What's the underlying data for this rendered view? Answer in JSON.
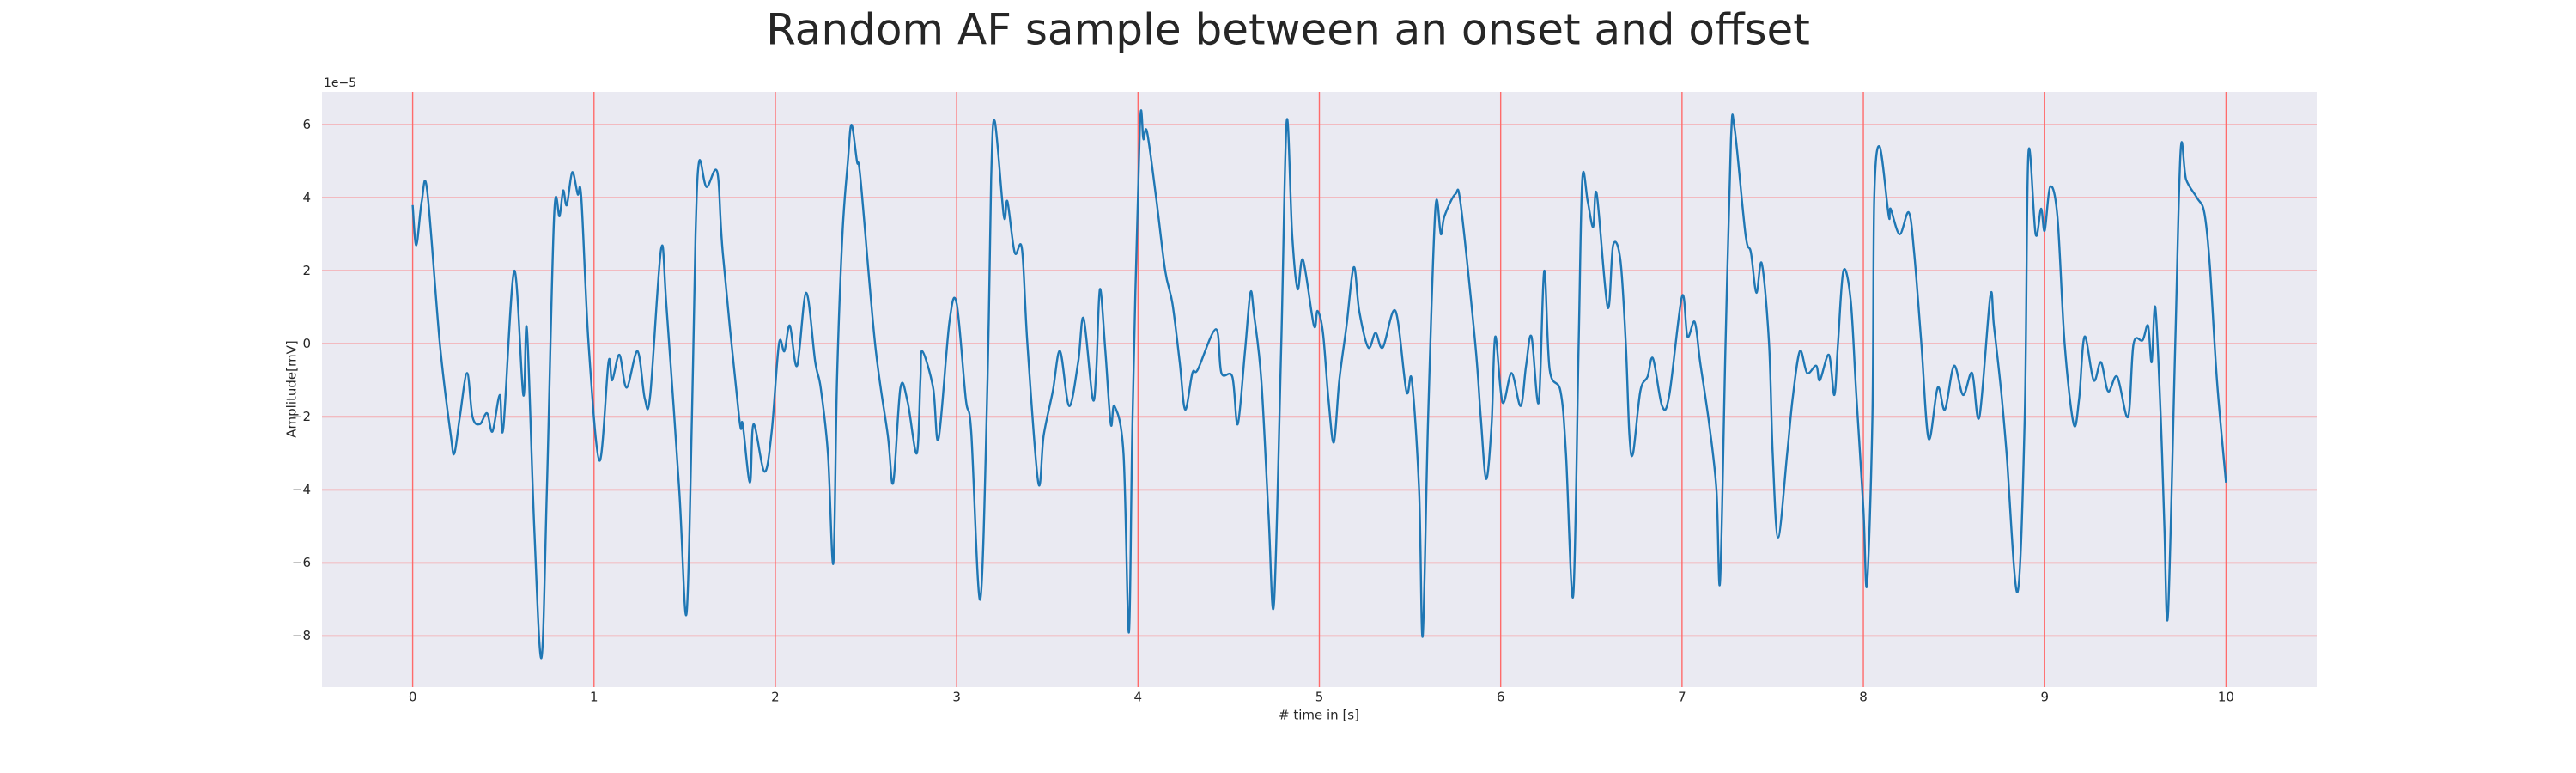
{
  "chart_data": {
    "type": "line",
    "title": "Random AF sample between an onset and offset",
    "x_label": "# time in [s]",
    "y_label": "Amplitude[mV]",
    "y_offset_label": "1e−5",
    "background": "#eaeaf2",
    "grid": true,
    "grid_color": "#ff6b6b",
    "xlim": [
      -0.5,
      10.5
    ],
    "ylim": [
      -9.4,
      6.9
    ],
    "xticks": [
      0,
      1,
      2,
      3,
      4,
      5,
      6,
      7,
      8,
      9,
      10
    ],
    "yticks": [
      {
        "value": -8,
        "label": "−8"
      },
      {
        "value": -6,
        "label": "−6"
      },
      {
        "value": -4,
        "label": "−4"
      },
      {
        "value": -2,
        "label": "−2"
      },
      0,
      2,
      4,
      6
    ],
    "x": [
      0.0,
      0.02,
      0.05,
      0.08,
      0.15,
      0.21,
      0.23,
      0.26,
      0.3,
      0.33,
      0.37,
      0.41,
      0.44,
      0.48,
      0.5,
      0.56,
      0.61,
      0.63,
      0.67,
      0.71,
      0.74,
      0.78,
      0.81,
      0.83,
      0.85,
      0.88,
      0.91,
      0.93,
      0.97,
      1.03,
      1.08,
      1.1,
      1.14,
      1.18,
      1.24,
      1.28,
      1.31,
      1.37,
      1.4,
      1.47,
      1.51,
      1.54,
      1.56,
      1.58,
      1.62,
      1.68,
      1.71,
      1.8,
      1.82,
      1.86,
      1.88,
      1.94,
      1.98,
      2.02,
      2.05,
      2.08,
      2.12,
      2.17,
      2.22,
      2.25,
      2.29,
      2.32,
      2.34,
      2.37,
      2.4,
      2.42,
      2.45,
      2.47,
      2.55,
      2.62,
      2.65,
      2.69,
      2.73,
      2.78,
      2.8,
      2.81,
      2.87,
      2.9,
      2.96,
      3.0,
      3.05,
      3.08,
      3.13,
      3.17,
      3.19,
      3.21,
      3.26,
      3.28,
      3.32,
      3.36,
      3.39,
      3.45,
      3.48,
      3.53,
      3.57,
      3.62,
      3.67,
      3.7,
      3.75,
      3.77,
      3.79,
      3.82,
      3.85,
      3.87,
      3.92,
      3.95,
      3.97,
      4.01,
      4.03,
      4.05,
      4.1,
      4.15,
      4.19,
      4.23,
      4.26,
      4.3,
      4.33,
      4.43,
      4.46,
      4.52,
      4.55,
      4.59,
      4.62,
      4.64,
      4.68,
      4.72,
      4.75,
      4.79,
      4.82,
      4.85,
      4.88,
      4.91,
      4.97,
      4.99,
      5.02,
      5.05,
      5.08,
      5.11,
      5.15,
      5.19,
      5.22,
      5.27,
      5.31,
      5.35,
      5.42,
      5.48,
      5.51,
      5.55,
      5.57,
      5.6,
      5.64,
      5.67,
      5.69,
      5.75,
      5.78,
      5.86,
      5.89,
      5.92,
      5.95,
      5.97,
      6.01,
      6.06,
      6.11,
      6.14,
      6.17,
      6.21,
      6.24,
      6.27,
      6.33,
      6.36,
      6.4,
      6.43,
      6.45,
      6.48,
      6.51,
      6.53,
      6.59,
      6.62,
      6.66,
      6.69,
      6.71,
      6.73,
      6.77,
      6.81,
      6.84,
      6.89,
      6.93,
      7.0,
      7.03,
      7.07,
      7.1,
      7.15,
      7.19,
      7.21,
      7.24,
      7.27,
      7.29,
      7.35,
      7.38,
      7.41,
      7.44,
      7.48,
      7.5,
      7.53,
      7.58,
      7.61,
      7.65,
      7.69,
      7.74,
      7.76,
      7.81,
      7.84,
      7.86,
      7.89,
      7.93,
      7.96,
      8.0,
      8.02,
      8.05,
      8.06,
      8.09,
      8.14,
      8.15,
      8.2,
      8.25,
      8.28,
      8.32,
      8.36,
      8.41,
      8.45,
      8.5,
      8.55,
      8.6,
      8.64,
      8.7,
      8.72,
      8.76,
      8.79,
      8.85,
      8.89,
      8.91,
      8.95,
      8.98,
      9.0,
      9.03,
      9.07,
      9.11,
      9.16,
      9.19,
      9.22,
      9.27,
      9.31,
      9.35,
      9.4,
      9.46,
      9.49,
      9.54,
      9.57,
      9.59,
      9.61,
      9.64,
      9.66,
      9.68,
      9.72,
      9.75,
      9.78,
      9.84,
      9.88,
      9.91,
      9.95,
      10.0
    ],
    "series": [
      {
        "color": "#1f77b4",
        "values": [
          3.8,
          2.7,
          3.9,
          4.2,
          0,
          -2.5,
          -3,
          -2,
          -0.8,
          -2,
          -2.2,
          -1.9,
          -2.4,
          -1.4,
          -2.3,
          2.0,
          -1.4,
          0.4,
          -5,
          -8.6,
          -4,
          3.5,
          3.5,
          4.2,
          3.8,
          4.7,
          4.1,
          4,
          0,
          -3.2,
          -0.5,
          -1,
          -0.3,
          -1.2,
          -0.2,
          -1.5,
          -1.4,
          2.6,
          1,
          -4,
          -7.4,
          -2,
          3,
          5,
          4.3,
          4.7,
          2.5,
          -2,
          -2.2,
          -3.8,
          -2.2,
          -3.5,
          -2.4,
          0,
          -0.2,
          0.5,
          -0.6,
          1.4,
          -0.5,
          -1.2,
          -3,
          -6,
          -1,
          3,
          5,
          6,
          5,
          4.5,
          0,
          -2.5,
          -3.8,
          -1.2,
          -1.6,
          -3,
          -1,
          -0.2,
          -1.2,
          -2.6,
          0.6,
          1.1,
          -1.5,
          -2.4,
          -7,
          -1,
          4.5,
          6.1,
          3.5,
          3.9,
          2.5,
          2.6,
          0,
          -3.8,
          -2.5,
          -1.3,
          -0.2,
          -1.7,
          -0.5,
          0.7,
          -1.5,
          -0.7,
          1.5,
          -0.2,
          -2.2,
          -1.7,
          -3,
          -7.9,
          -2,
          5.9,
          5.6,
          5.8,
          4,
          2,
          1.1,
          -0.5,
          -1.8,
          -0.8,
          -0.7,
          0.4,
          -0.8,
          -0.9,
          -2.2,
          -0.2,
          1.4,
          0.8,
          -1,
          -4.7,
          -7.1,
          0,
          6.1,
          3,
          1.5,
          2.3,
          0.5,
          0.9,
          0.3,
          -1.5,
          -2.7,
          -1,
          0.5,
          2.1,
          0.9,
          -0.1,
          0.3,
          -0.1,
          0.9,
          -1.3,
          -1,
          -4,
          -8,
          -2,
          3.7,
          3,
          3.5,
          4.1,
          3.8,
          0,
          -2,
          -3.7,
          -2.2,
          0.2,
          -1.6,
          -0.8,
          -1.7,
          -0.6,
          0.2,
          -1.6,
          2,
          -0.7,
          -1.3,
          -3,
          -6.9,
          0,
          4.5,
          3.9,
          3.2,
          4.1,
          1,
          2.7,
          2.3,
          0,
          -2.5,
          -3,
          -1.3,
          -0.9,
          -0.4,
          -1.7,
          -1.4,
          1.3,
          0.2,
          0.6,
          -0.5,
          -2.2,
          -4,
          -6.5,
          0,
          5.6,
          5.9,
          3,
          2.5,
          1.4,
          2.2,
          0,
          -3,
          -5.3,
          -3,
          -1.5,
          -0.2,
          -0.8,
          -0.6,
          -1,
          -0.3,
          -1.4,
          0,
          2,
          1.2,
          -1.3,
          -4.5,
          -6.6,
          -2,
          4,
          5.4,
          3.5,
          3.7,
          3,
          3.6,
          2.5,
          0,
          -2.6,
          -1.2,
          -1.8,
          -0.6,
          -1.4,
          -0.8,
          -2,
          1.3,
          0.5,
          -1.3,
          -3,
          -6.8,
          -2,
          5.2,
          3,
          3.7,
          3.1,
          4.3,
          3.5,
          0,
          -2.2,
          -1.5,
          0.2,
          -1,
          -0.5,
          -1.3,
          -0.9,
          -2,
          0,
          0.1,
          0.5,
          -0.5,
          1,
          -2,
          -5,
          -7.4,
          0,
          5.3,
          4.5,
          4,
          3.6,
          2.2,
          -1,
          -3.8
        ]
      }
    ]
  }
}
